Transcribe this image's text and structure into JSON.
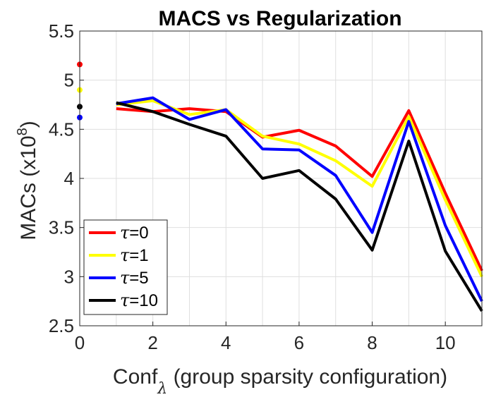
{
  "chart_data": {
    "type": "line",
    "title": "MACS vs Regularization",
    "xlabel": "Conf",
    "xlabel_subscript": "λ",
    "xlabel_rest": " (group sparsity configuration)",
    "ylabel": "MACs (x10",
    "ylabel_sup": "8",
    "ylabel_close": ")",
    "xlim": [
      0,
      11
    ],
    "ylim": [
      2.5,
      5.5
    ],
    "xticks": [
      "0",
      "2",
      "4",
      "6",
      "8",
      "10"
    ],
    "yticks": [
      "2.5",
      "3",
      "3.5",
      "4",
      "4.5",
      "5",
      "5.5"
    ],
    "grid": true,
    "legend_position": "bottom-left",
    "x": [
      1,
      2,
      3,
      4,
      5,
      6,
      7,
      8,
      9,
      10,
      11
    ],
    "series": [
      {
        "name": "τ=0",
        "tau": "τ",
        "eq": "=0",
        "color": "#ff0000",
        "baseline": 5.16,
        "values": [
          4.71,
          4.68,
          4.71,
          4.68,
          4.42,
          4.49,
          4.33,
          4.02,
          4.69,
          3.85,
          3.06
        ]
      },
      {
        "name": "τ=1",
        "tau": "τ",
        "eq": "=1",
        "color": "#ffff00",
        "baseline": 4.9,
        "values": [
          4.75,
          4.79,
          4.65,
          4.7,
          4.43,
          4.35,
          4.18,
          3.92,
          4.63,
          3.78,
          3.0
        ]
      },
      {
        "name": "τ=5",
        "tau": "τ",
        "eq": "=5",
        "color": "#0000ff",
        "baseline": 4.62,
        "values": [
          4.76,
          4.82,
          4.6,
          4.7,
          4.3,
          4.29,
          4.03,
          3.45,
          4.58,
          3.52,
          2.75
        ]
      },
      {
        "name": "τ=10",
        "tau": "τ",
        "eq": "=10",
        "color": "#000000",
        "baseline": 4.73,
        "values": [
          4.77,
          4.68,
          4.55,
          4.43,
          4.0,
          4.08,
          3.79,
          3.27,
          4.38,
          3.26,
          2.65
        ]
      }
    ]
  }
}
